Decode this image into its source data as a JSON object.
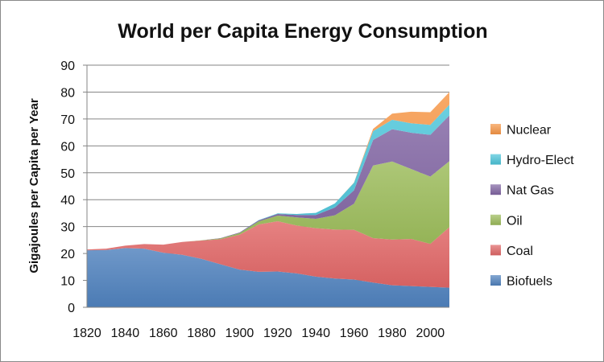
{
  "chart_data": {
    "type": "area",
    "stacked": true,
    "title": "World per Capita Energy Consumption",
    "xlabel": "",
    "ylabel": "Gigajoules per Capita per Year",
    "ylim": [
      0,
      90
    ],
    "yticks": [
      0,
      10,
      20,
      30,
      40,
      50,
      60,
      70,
      80,
      90
    ],
    "xlim": [
      1820,
      2010
    ],
    "xticks": [
      1820,
      1840,
      1860,
      1880,
      1900,
      1920,
      1940,
      1960,
      1980,
      2000
    ],
    "grid": "horizontal",
    "legend_position": "right",
    "x": [
      1820,
      1830,
      1840,
      1850,
      1860,
      1870,
      1880,
      1890,
      1900,
      1910,
      1920,
      1930,
      1940,
      1950,
      1960,
      1970,
      1980,
      1990,
      2000,
      2010
    ],
    "series": [
      {
        "name": "Biofuels",
        "color": "#4f81bd",
        "values": [
          21.2,
          21.3,
          22.0,
          21.8,
          20.3,
          19.5,
          18.0,
          16.0,
          14.0,
          13.2,
          13.3,
          12.6,
          11.4,
          10.7,
          10.3,
          9.2,
          8.2,
          7.9,
          7.6,
          7.3
        ]
      },
      {
        "name": "Coal",
        "color": "#e06666",
        "values": [
          0.3,
          0.5,
          0.9,
          1.7,
          3.0,
          4.8,
          6.8,
          9.3,
          13.0,
          17.6,
          18.7,
          17.8,
          18.0,
          18.2,
          18.5,
          16.5,
          17.0,
          17.5,
          16.0,
          22.5
        ]
      },
      {
        "name": "Oil",
        "color": "#9bbb59",
        "values": [
          0,
          0,
          0,
          0,
          0,
          0,
          0.1,
          0.3,
          0.6,
          1.1,
          2.1,
          3.0,
          3.5,
          5.3,
          9.7,
          27.0,
          29.0,
          26.0,
          25.0,
          24.5
        ]
      },
      {
        "name": "Nat Gas",
        "color": "#8064a2",
        "values": [
          0,
          0,
          0,
          0,
          0,
          0,
          0,
          0.1,
          0.2,
          0.4,
          0.6,
          0.9,
          1.4,
          2.9,
          5.0,
          9.5,
          12.0,
          13.5,
          15.5,
          17.0
        ]
      },
      {
        "name": "Hydro-Elect",
        "color": "#4bc4d9",
        "values": [
          0,
          0,
          0,
          0,
          0,
          0,
          0,
          0,
          0,
          0.1,
          0.2,
          0.4,
          0.8,
          1.5,
          2.8,
          3.3,
          3.5,
          3.5,
          3.7,
          4.0
        ]
      },
      {
        "name": "Nuclear",
        "color": "#f79646",
        "values": [
          0,
          0,
          0,
          0,
          0,
          0,
          0,
          0,
          0,
          0,
          0,
          0,
          0,
          0,
          0.1,
          0.8,
          2.3,
          4.3,
          4.7,
          4.7
        ]
      }
    ],
    "legend_order": [
      "Nuclear",
      "Hydro-Elect",
      "Nat Gas",
      "Oil",
      "Coal",
      "Biofuels"
    ]
  }
}
